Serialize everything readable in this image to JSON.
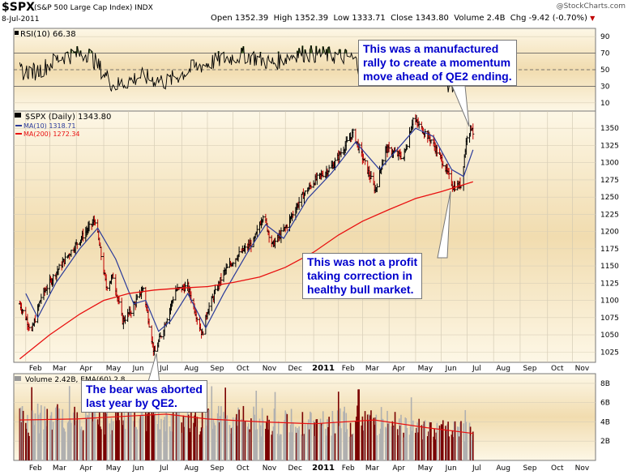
{
  "header": {
    "symbol": "$SPX",
    "name": "(S&P 500 Large Cap Index)",
    "exchange": "INDX",
    "date": "8-Jul-2011",
    "site": "@StockCharts.com",
    "open_label": "Open",
    "open": "1352.39",
    "high_label": "High",
    "high": "1352.39",
    "low_label": "Low",
    "low": "1333.71",
    "close_label": "Close",
    "close": "1343.80",
    "volume_label": "Volume",
    "volume": "2.4B",
    "chg_label": "Chg",
    "chg": "-9.42 (-0.70%)",
    "chg_arrow": "▼"
  },
  "colors": {
    "panel_top": "#fdf7e6",
    "panel_mid": "#f1dcaf",
    "price_bar": "#000000",
    "ma10": "#2a3a9a",
    "ma200": "#e81010",
    "rsi_line": "#000000",
    "rsi_fill": "#4e6b2e",
    "volume_up": "#b0b0b0",
    "volume_down": "#7a0000",
    "callout_text": "#0000cc"
  },
  "annotations": [
    {
      "text": "This was a manufactured\nrally to create a momentum\nmove ahead of QE2 ending."
    },
    {
      "text": "This was not a profit\ntaking correction in\nhealthy bull market."
    },
    {
      "text": "The bear was aborted\nlast year by QE2."
    }
  ],
  "chart_data": [
    {
      "type": "line",
      "title": "RSI(10) 66.38",
      "series": [
        {
          "name": "RSI(10)"
        }
      ],
      "ylim": [
        0,
        100
      ],
      "y_ticks": [
        10,
        30,
        50,
        70,
        90
      ],
      "reference_lines": [
        30,
        50,
        70
      ],
      "x": [
        "2010-02",
        "2010-03",
        "2010-04",
        "2010-05",
        "2010-06",
        "2010-07",
        "2010-08",
        "2010-09",
        "2010-10",
        "2010-11",
        "2010-12",
        "2011-01",
        "2011-02",
        "2011-03",
        "2011-04",
        "2011-05",
        "2011-06",
        "2011-07"
      ],
      "values": [
        48,
        66,
        70,
        30,
        42,
        35,
        52,
        62,
        68,
        58,
        70,
        68,
        65,
        40,
        58,
        55,
        28,
        66
      ]
    },
    {
      "type": "line",
      "title": "$SPX (Daily) 1343.80",
      "series": [
        {
          "name": "$SPX (Daily)",
          "last": "1343.80",
          "points": [
            [
              "2010-01-25",
              1095
            ],
            [
              "2010-02-08",
              1055
            ],
            [
              "2010-02-19",
              1105
            ],
            [
              "2010-03-08",
              1140
            ],
            [
              "2010-03-22",
              1165
            ],
            [
              "2010-04-05",
              1188
            ],
            [
              "2010-04-23",
              1217
            ],
            [
              "2010-05-06",
              1120
            ],
            [
              "2010-05-14",
              1135
            ],
            [
              "2010-05-25",
              1070
            ],
            [
              "2010-06-04",
              1085
            ],
            [
              "2010-06-18",
              1118
            ],
            [
              "2010-07-01",
              1022
            ],
            [
              "2010-07-12",
              1060
            ],
            [
              "2010-07-26",
              1115
            ],
            [
              "2010-08-09",
              1120
            ],
            [
              "2010-08-26",
              1050
            ],
            [
              "2010-09-01",
              1085
            ],
            [
              "2010-09-20",
              1140
            ],
            [
              "2010-10-06",
              1165
            ],
            [
              "2010-10-25",
              1185
            ],
            [
              "2010-11-05",
              1225
            ],
            [
              "2010-11-16",
              1180
            ],
            [
              "2010-12-01",
              1205
            ],
            [
              "2010-12-20",
              1250
            ],
            [
              "2011-01-05",
              1275
            ],
            [
              "2011-01-25",
              1295
            ],
            [
              "2011-02-18",
              1343
            ],
            [
              "2011-03-01",
              1308
            ],
            [
              "2011-03-16",
              1260
            ],
            [
              "2011-03-28",
              1320
            ],
            [
              "2011-04-18",
              1308
            ],
            [
              "2011-04-29",
              1364
            ],
            [
              "2011-05-10",
              1348
            ],
            [
              "2011-05-20",
              1333
            ],
            [
              "2011-06-03",
              1300
            ],
            [
              "2011-06-15",
              1265
            ],
            [
              "2011-06-24",
              1268
            ],
            [
              "2011-07-01",
              1340
            ],
            [
              "2011-07-07",
              1353
            ],
            [
              "2011-07-08",
              1343.8
            ]
          ]
        },
        {
          "name": "MA(10)",
          "last": "1318.71",
          "points": [
            [
              "2010-02-01",
              1110
            ],
            [
              "2010-02-15",
              1075
            ],
            [
              "2010-03-08",
              1125
            ],
            [
              "2010-04-05",
              1175
            ],
            [
              "2010-04-26",
              1205
            ],
            [
              "2010-05-17",
              1160
            ],
            [
              "2010-06-07",
              1095
            ],
            [
              "2010-06-21",
              1100
            ],
            [
              "2010-07-06",
              1055
            ],
            [
              "2010-07-20",
              1070
            ],
            [
              "2010-08-09",
              1110
            ],
            [
              "2010-08-30",
              1060
            ],
            [
              "2010-09-20",
              1110
            ],
            [
              "2010-10-18",
              1170
            ],
            [
              "2010-11-08",
              1210
            ],
            [
              "2010-11-29",
              1190
            ],
            [
              "2010-12-27",
              1248
            ],
            [
              "2011-01-24",
              1285
            ],
            [
              "2011-02-21",
              1330
            ],
            [
              "2011-03-21",
              1290
            ],
            [
              "2011-04-11",
              1320
            ],
            [
              "2011-05-02",
              1350
            ],
            [
              "2011-05-23",
              1338
            ],
            [
              "2011-06-13",
              1290
            ],
            [
              "2011-06-27",
              1280
            ],
            [
              "2011-07-08",
              1318.71
            ]
          ]
        },
        {
          "name": "MA(200)",
          "last": "1272.34",
          "points": [
            [
              "2010-01-25",
              1015
            ],
            [
              "2010-03-01",
              1050
            ],
            [
              "2010-04-05",
              1080
            ],
            [
              "2010-05-03",
              1100
            ],
            [
              "2010-06-01",
              1110
            ],
            [
              "2010-07-01",
              1115
            ],
            [
              "2010-08-02",
              1118
            ],
            [
              "2010-09-01",
              1120
            ],
            [
              "2010-10-01",
              1126
            ],
            [
              "2010-11-01",
              1134
            ],
            [
              "2010-12-01",
              1148
            ],
            [
              "2011-01-03",
              1170
            ],
            [
              "2011-02-01",
              1195
            ],
            [
              "2011-03-01",
              1215
            ],
            [
              "2011-04-01",
              1232
            ],
            [
              "2011-05-02",
              1248
            ],
            [
              "2011-06-01",
              1258
            ],
            [
              "2011-07-08",
              1272.34
            ]
          ]
        }
      ],
      "ylim": [
        1010,
        1375
      ],
      "y_ticks": [
        1025,
        1050,
        1075,
        1100,
        1125,
        1150,
        1175,
        1200,
        1225,
        1250,
        1275,
        1300,
        1325,
        1350
      ],
      "x_ticks": [
        "Feb",
        "Mar",
        "Apr",
        "May",
        "Jun",
        "Jul",
        "Aug",
        "Sep",
        "Oct",
        "Nov",
        "Dec",
        "2011",
        "Feb",
        "Mar",
        "Apr",
        "May",
        "Jun",
        "Jul",
        "Aug",
        "Sep",
        "Oct",
        "Nov"
      ],
      "xlim": [
        "2010-01-18",
        "2011-11-28"
      ]
    },
    {
      "type": "bar",
      "title": "Volume 2.42B, EMA(60) 2.8",
      "series": [
        {
          "name": "Volume",
          "last": "2.42B"
        },
        {
          "name": "EMA(60)",
          "last": "2.8",
          "points": [
            [
              "2010-01-25",
              4.2
            ],
            [
              "2010-04-01",
              4.3
            ],
            [
              "2010-06-01",
              4.6
            ],
            [
              "2010-07-15",
              4.8
            ],
            [
              "2010-09-01",
              4.3
            ],
            [
              "2010-11-01",
              4.0
            ],
            [
              "2011-01-03",
              3.8
            ],
            [
              "2011-03-15",
              4.2
            ],
            [
              "2011-05-15",
              3.4
            ],
            [
              "2011-07-08",
              2.8
            ]
          ]
        }
      ],
      "ylim": [
        0,
        9
      ],
      "y_ticks": [
        "2B",
        "4B",
        "6B",
        "8B"
      ],
      "x_ticks": [
        "Feb",
        "Mar",
        "Apr",
        "May",
        "Jun",
        "Jul",
        "Aug",
        "Sep",
        "Oct",
        "Nov",
        "Dec",
        "2011",
        "Feb",
        "Mar",
        "Apr",
        "May",
        "Jun",
        "Jul",
        "Aug",
        "Sep",
        "Oct",
        "Nov"
      ]
    }
  ]
}
